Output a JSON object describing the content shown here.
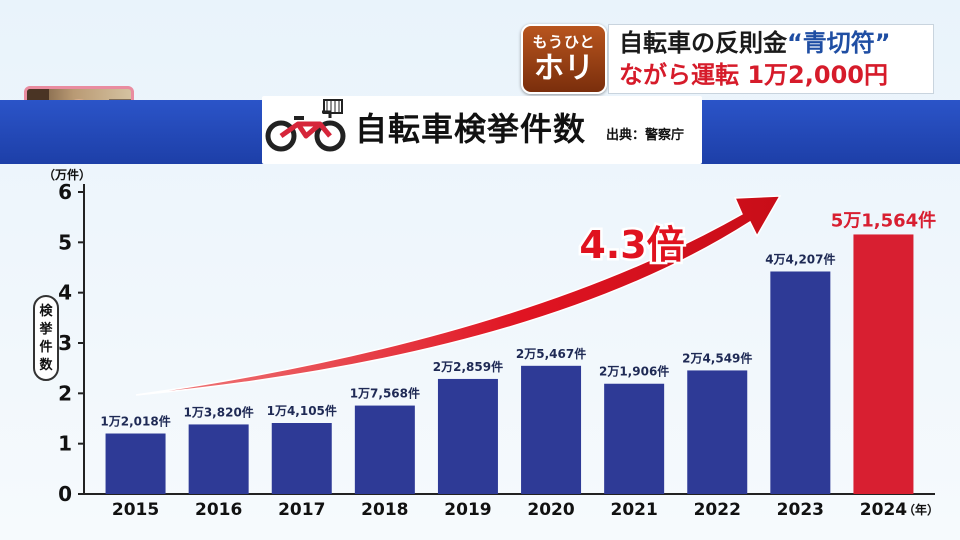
{
  "corner_logo": {
    "line1": "もうひと",
    "line2": "ホリ"
  },
  "headline": {
    "line1_prefix": "自転車の反則金",
    "line1_emph": "“青切符”",
    "line2": "ながら運転 1万2,000円"
  },
  "title": {
    "main": "自転車検挙件数",
    "source": "出典：警察庁"
  },
  "colors": {
    "bar": "#2e3a96",
    "highlight_bar": "#d81f31",
    "arrow": "#e01422",
    "title_band": "#2348b8"
  },
  "annotation": {
    "multiplier_label": "4.3倍"
  },
  "chart_data": {
    "type": "bar",
    "unit_top": "（万件）",
    "ylabel": "検挙件数",
    "xunit": "（年）",
    "ylim": [
      0,
      6
    ],
    "yticks": [
      "0",
      "1",
      "2",
      "3",
      "4",
      "5",
      "6"
    ],
    "categories": [
      "2015",
      "2016",
      "2017",
      "2018",
      "2019",
      "2020",
      "2021",
      "2022",
      "2023",
      "2024"
    ],
    "values": [
      1.2018,
      1.382,
      1.4105,
      1.7568,
      2.2859,
      2.5467,
      2.1906,
      2.4549,
      4.4207,
      5.1564
    ],
    "data_labels": [
      "1万2,018件",
      "1万3,820件",
      "1万4,105件",
      "1万7,568件",
      "2万2,859件",
      "2万5,467件",
      "2万1,906件",
      "2万4,549件",
      "4万4,207件",
      "5万1,564件"
    ],
    "highlight_index": 9,
    "grid": false
  }
}
